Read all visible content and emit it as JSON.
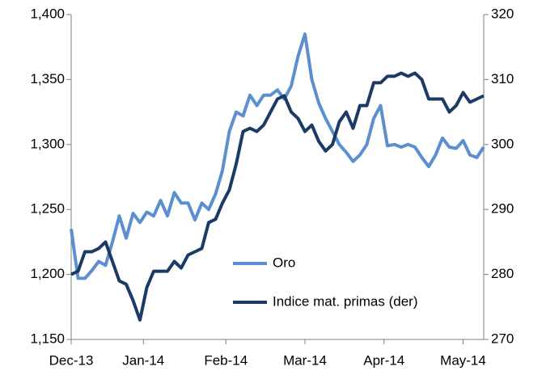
{
  "chart_data": {
    "type": "line",
    "x": [
      0,
      2,
      4,
      6,
      8,
      10,
      12,
      14,
      16,
      18,
      20,
      22,
      24,
      26,
      28,
      30,
      32,
      34,
      36,
      38,
      40,
      42,
      44,
      46,
      48,
      50,
      52,
      54,
      56,
      58,
      60,
      62,
      64,
      66,
      68,
      70,
      72,
      74,
      76,
      78,
      80,
      82,
      84,
      86,
      88,
      90,
      92,
      94,
      96,
      98,
      100,
      102,
      104,
      106,
      108,
      110,
      112,
      114,
      116,
      118,
      120
    ],
    "xlim": [
      0,
      120
    ],
    "xticks": [
      {
        "value": 0,
        "label": "Dec-13"
      },
      {
        "value": 21,
        "label": "Jan-14"
      },
      {
        "value": 45,
        "label": "Feb-14"
      },
      {
        "value": 68,
        "label": "Mar-14"
      },
      {
        "value": 91,
        "label": "Apr-14"
      },
      {
        "value": 114,
        "label": "May-14"
      }
    ],
    "ylim": [
      1150,
      1400
    ],
    "yticks": [
      {
        "value": 1150,
        "label": "1,150"
      },
      {
        "value": 1200,
        "label": "1,200"
      },
      {
        "value": 1250,
        "label": "1,250"
      },
      {
        "value": 1300,
        "label": "1,300"
      },
      {
        "value": 1350,
        "label": "1,350"
      },
      {
        "value": 1400,
        "label": "1,400"
      }
    ],
    "y2lim": [
      270,
      320
    ],
    "y2ticks": [
      270,
      280,
      290,
      300,
      310,
      320
    ],
    "series": [
      {
        "name": "Oro",
        "color": "#5b8fd0",
        "values": [
          1235,
          1197,
          1197,
          1203,
          1210,
          1207,
          1225,
          1245,
          1228,
          1247,
          1240,
          1248,
          1245,
          1257,
          1245,
          1263,
          1255,
          1255,
          1242,
          1255,
          1250,
          1262,
          1280,
          1310,
          1325,
          1322,
          1338,
          1330,
          1338,
          1338,
          1342,
          1335,
          1345,
          1368,
          1385,
          1350,
          1332,
          1320,
          1310,
          1300,
          1294,
          1287,
          1292,
          1300,
          1320,
          1330,
          1299,
          1300,
          1298,
          1300,
          1298,
          1290,
          1283,
          1292,
          1305,
          1298,
          1297,
          1303,
          1292,
          1290,
          1298
        ]
      },
      {
        "name": "Indice mat. primas (der)",
        "color": "#1b3a66",
        "axis": "y2",
        "values": [
          280,
          280.5,
          283.5,
          283.5,
          284,
          285,
          282,
          279,
          278.5,
          276,
          273,
          278,
          280.5,
          280.5,
          280.5,
          282,
          281,
          283,
          283.5,
          284,
          288,
          288.5,
          291,
          293,
          297,
          302,
          302.5,
          302,
          303,
          305,
          307,
          307.5,
          305,
          304,
          302,
          303,
          300.5,
          299,
          300,
          303.5,
          305,
          302.5,
          306,
          306,
          309.5,
          309.5,
          310.5,
          310.5,
          311,
          310.5,
          311,
          310,
          307,
          307,
          307,
          305,
          306,
          308,
          306.5,
          307,
          307.5
        ]
      }
    ]
  }
}
